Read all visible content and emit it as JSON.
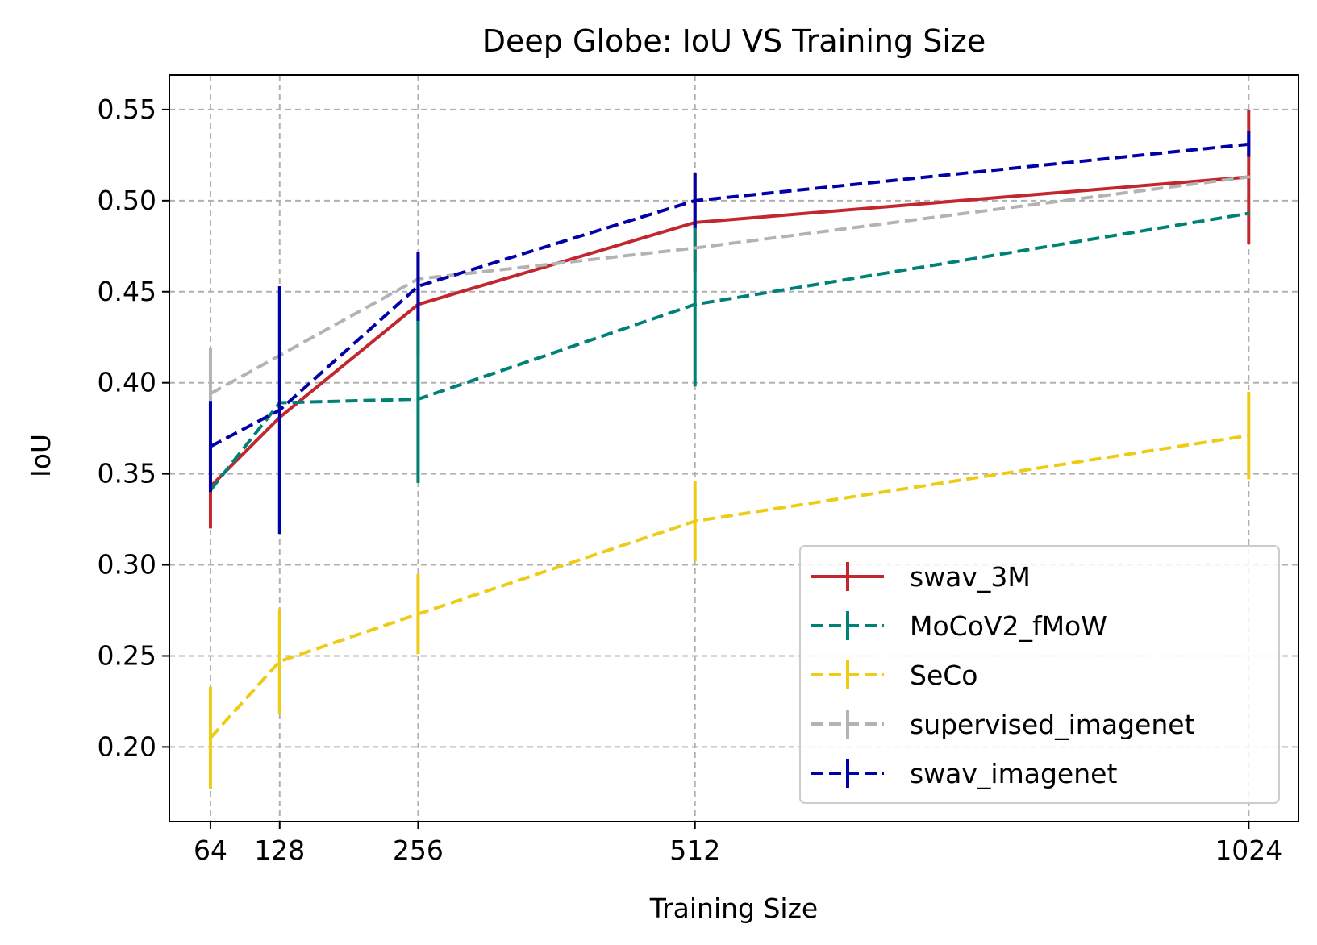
{
  "chart_data": {
    "type": "line",
    "title": "Deep Globe: IoU VS Training Size",
    "xlabel": "Training Size",
    "ylabel": "IoU",
    "x": [
      64,
      128,
      256,
      512,
      1024
    ],
    "x_tick_labels": [
      "64",
      "128",
      "256",
      "512",
      "1024"
    ],
    "y_ticks": [
      0.2,
      0.25,
      0.3,
      0.35,
      0.4,
      0.45,
      0.5,
      0.55
    ],
    "y_tick_labels": [
      "0.20",
      "0.25",
      "0.30",
      "0.35",
      "0.40",
      "0.45",
      "0.50",
      "0.55"
    ],
    "xlim": [
      26,
      1070
    ],
    "ylim": [
      0.159,
      0.569
    ],
    "grid": true,
    "legend_position": "lower right",
    "series": [
      {
        "name": "swav_3M",
        "color": "#c1272d",
        "dashed": false,
        "values": [
          0.343,
          0.381,
          0.443,
          0.488,
          0.513
        ],
        "errors": [
          0.023,
          0.0,
          0.028,
          0.027,
          0.037
        ]
      },
      {
        "name": "MoCoV2_fMoW",
        "color": "#008176",
        "dashed": true,
        "values": [
          0.341,
          0.389,
          0.391,
          0.443,
          0.493
        ],
        "errors": [
          0.0,
          0.0,
          0.046,
          0.045,
          0.0
        ]
      },
      {
        "name": "SeCo",
        "color": "#eecc16",
        "dashed": true,
        "values": [
          0.205,
          0.247,
          0.273,
          0.324,
          0.371
        ],
        "errors": [
          0.028,
          0.029,
          0.022,
          0.022,
          0.024
        ]
      },
      {
        "name": "supervised_imagenet",
        "color": "#b3b3b3",
        "dashed": true,
        "values": [
          0.394,
          0.415,
          0.457,
          0.474,
          0.513
        ],
        "errors": [
          0.025,
          0.0,
          0.0,
          0.0,
          0.0
        ]
      },
      {
        "name": "swav_imagenet",
        "color": "#0000a7",
        "dashed": true,
        "values": [
          0.365,
          0.385,
          0.453,
          0.5,
          0.531
        ],
        "errors": [
          0.025,
          0.068,
          0.019,
          0.015,
          0.007
        ]
      }
    ]
  }
}
